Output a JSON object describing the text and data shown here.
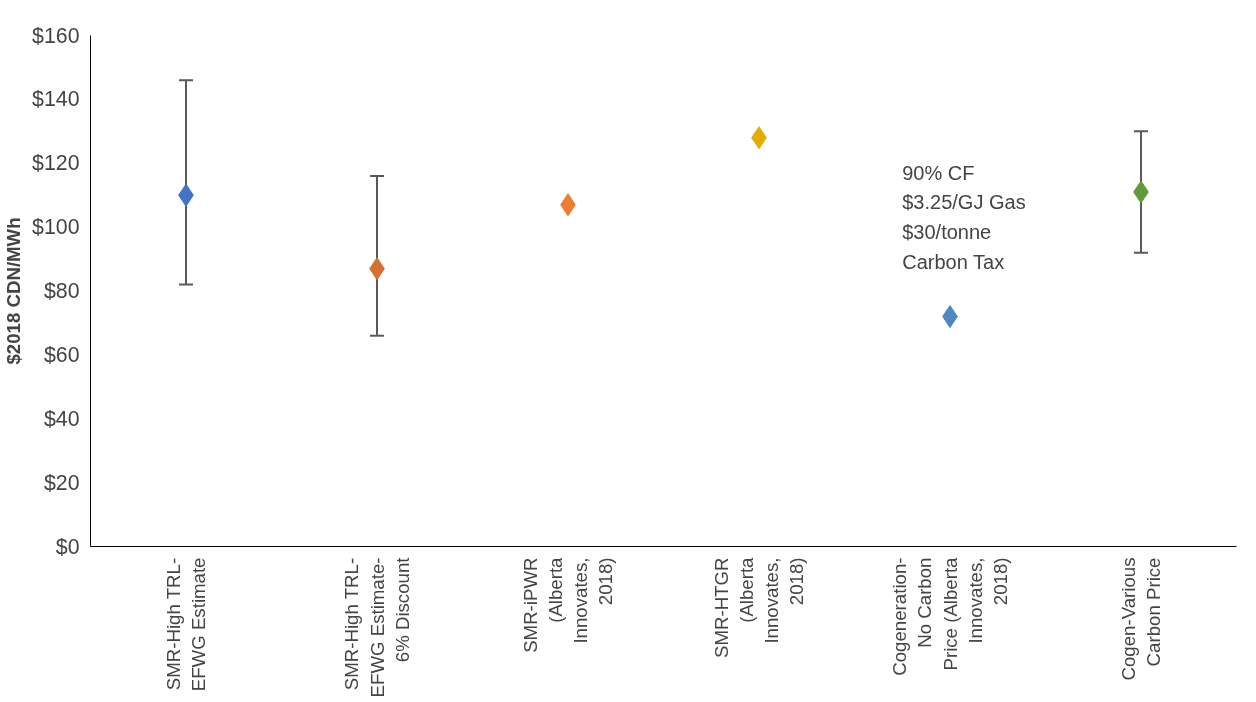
{
  "chart_data": {
    "type": "scatter",
    "ylabel": "$2018 CDN/MWh",
    "categories": [
      "SMR-High TRL-EFWG Estimate",
      "SMR-High TRL-EFWG Estimate- 6% Discount",
      "SMR-iPWR (Alberta Innovates, 2018)",
      "SMR-HTGR (Alberta Innovates, 2018)",
      "Cogeneration-No Carbon Price (Alberta Innovates, 2018)",
      "Cogen-Various Carbon Price"
    ],
    "values": [
      110,
      87,
      107,
      128,
      72,
      111
    ],
    "colors": [
      "#4472c4",
      "#d57030",
      "#ed7d31",
      "#e5ac00",
      "#4e88c0",
      "#5e9c3a"
    ],
    "errors": [
      [
        82,
        146
      ],
      [
        66,
        116
      ],
      null,
      null,
      null,
      [
        92,
        130
      ]
    ],
    "marker": "diamond",
    "grid": false,
    "ylim": [
      0,
      160
    ],
    "yticks": [
      {
        "value": 0,
        "label": "$0"
      },
      {
        "value": 20,
        "label": "$20"
      },
      {
        "value": 40,
        "label": "$40"
      },
      {
        "value": 60,
        "label": "$60"
      },
      {
        "value": 80,
        "label": "$80"
      },
      {
        "value": 100,
        "label": "$100"
      },
      {
        "value": 120,
        "label": "$120"
      },
      {
        "value": 140,
        "label": "$140"
      },
      {
        "value": 160,
        "label": "$160"
      }
    ],
    "annotations": [
      "90% CF\n$3.25/GJ Gas\n$30/tonne\nCarbon Tax"
    ]
  }
}
